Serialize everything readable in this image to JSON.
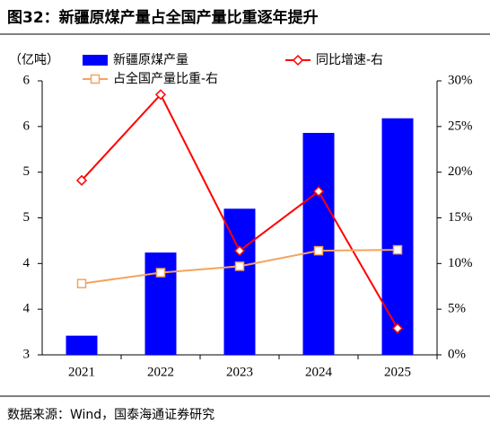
{
  "chart_data": {
    "type": "bar",
    "title": "图32：新疆原煤产量占全国产量比重逐年提升",
    "y_label": "（亿吨）",
    "source": "数据来源：Wind，国泰海通证券研究",
    "categories": [
      "2021",
      "2022",
      "2023",
      "2024",
      "2025"
    ],
    "series": [
      {
        "name": "新疆原煤产量",
        "type": "bar",
        "color": "#0000ff",
        "axis": "y",
        "values": [
          3.21,
          4.12,
          4.6,
          5.43,
          5.59
        ]
      },
      {
        "name": "同比增速-右",
        "type": "line",
        "marker": "diamond",
        "color": "#ff0000",
        "axis": "y2",
        "values": [
          19.1,
          28.5,
          11.4,
          17.9,
          2.9
        ]
      },
      {
        "name": "占全国产量比重-右",
        "type": "line",
        "marker": "square",
        "color": "#f4a460",
        "axis": "y2",
        "values": [
          7.8,
          9.0,
          9.7,
          11.4,
          11.5
        ]
      }
    ],
    "ylim": [
      3,
      6
    ],
    "yticks": [
      3,
      {
        "value": 3.5,
        "label": "4"
      },
      4,
      {
        "value": 4.5,
        "label": "5"
      },
      5,
      {
        "value": 5.5,
        "label": "6"
      },
      6
    ],
    "y2lim": [
      0,
      30
    ],
    "y2ticks": [
      {
        "value": 0,
        "label": "0%"
      },
      {
        "value": 5,
        "label": "5%"
      },
      {
        "value": 10,
        "label": "10%"
      },
      {
        "value": 15,
        "label": "15%"
      },
      {
        "value": 20,
        "label": "20%"
      },
      {
        "value": 25,
        "label": "25%"
      },
      {
        "value": 30,
        "label": "30%"
      }
    ],
    "grid": false
  }
}
